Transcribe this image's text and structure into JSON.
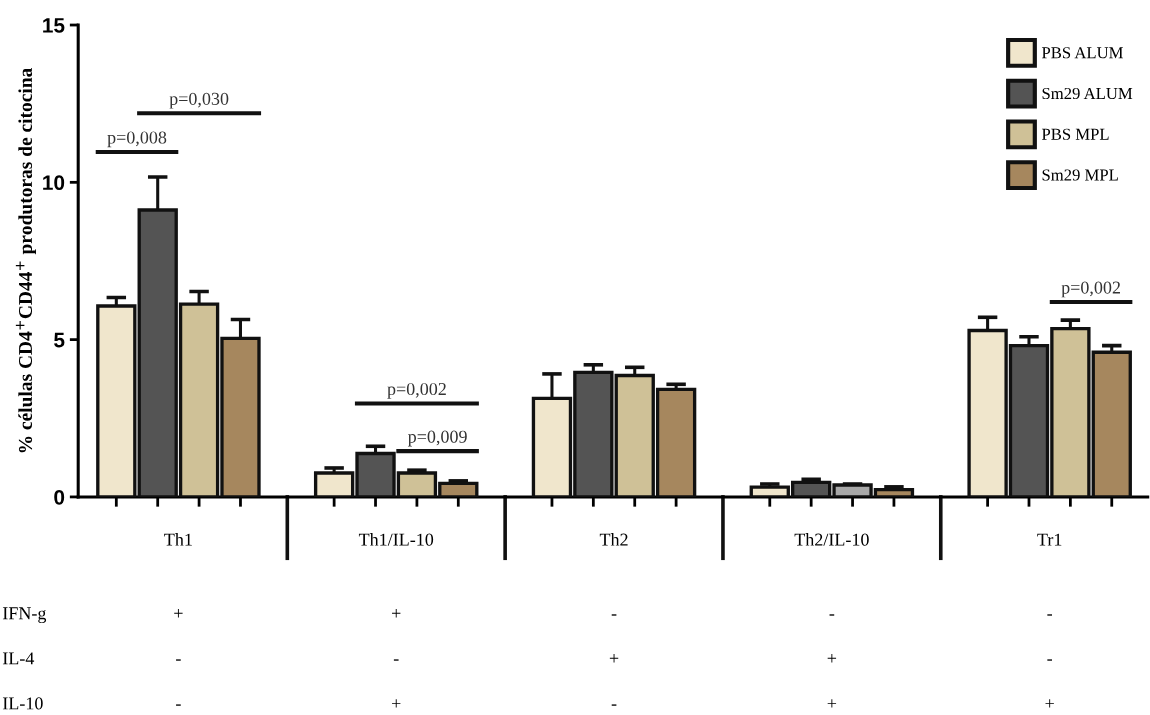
{
  "chart_data": {
    "type": "bar",
    "ylabel": "% células CD4$^{+}$CD44$^{+}$ produtoras de citocina",
    "categories": [
      "Th1",
      "Th1/IL-10",
      "Th2",
      "Th2/IL-10",
      "Tr1"
    ],
    "ylim": [
      0,
      15
    ],
    "yticks": [
      0,
      5,
      10,
      15
    ],
    "grid": false,
    "legend": "top right",
    "series": [
      {
        "name": "PBS ALUM",
        "color": "#f0e6cc",
        "values": [
          6.07,
          0.76,
          3.13,
          0.31,
          5.29
        ],
        "errors": [
          0.27,
          0.16,
          0.78,
          0.1,
          0.42
        ]
      },
      {
        "name": "Sm29 ALUM",
        "color": "#545454",
        "values": [
          9.12,
          1.38,
          3.96,
          0.46,
          4.81
        ],
        "errors": [
          1.05,
          0.23,
          0.24,
          0.1,
          0.28
        ]
      },
      {
        "name": "PBS MPL",
        "color": "#cfc197",
        "colors": [
          "#cfc197",
          "#cfc197",
          "#cfc197",
          "#a8a8a8",
          "#cfc197"
        ],
        "values": [
          6.13,
          0.76,
          3.86,
          0.38,
          5.35
        ],
        "errors": [
          0.4,
          0.09,
          0.26,
          0.03,
          0.27
        ]
      },
      {
        "name": "Sm29 MPL",
        "color": "#a6875e",
        "values": [
          5.04,
          0.43,
          3.42,
          0.23,
          4.6
        ],
        "errors": [
          0.6,
          0.08,
          0.16,
          0.09,
          0.21
        ]
      }
    ],
    "annotations": [
      "p=0,008",
      "p=0,030",
      "p=0,002",
      "p=0,009",
      "p=0,002",
      "IFN-g",
      "+",
      "+",
      "-",
      "-",
      "-",
      "IL-4",
      "-",
      "-",
      "+",
      "+",
      "-",
      "IL-10",
      "-",
      "+",
      "-",
      "+",
      "+"
    ]
  }
}
